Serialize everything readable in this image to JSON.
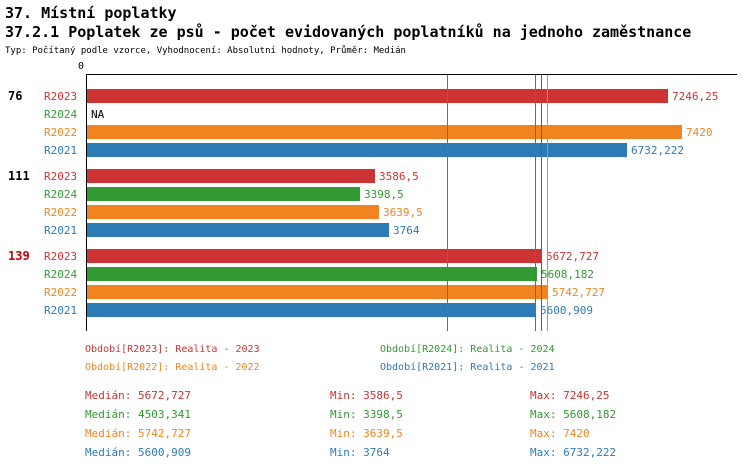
{
  "header": {
    "title": "37. Místní poplatky",
    "subtitle": "37.2.1 Poplatek ze psů - počet evidovaných poplatníků na jednoho zaměstnance",
    "meta": "Typ: Počítaný podle vzorce, Vyhodnocení: Absolutní hodnoty, Průměr: Medián"
  },
  "series_colors": {
    "R2023": "#cc3333",
    "R2024": "#339933",
    "R2022": "#f08421",
    "R2021": "#2d7bb6"
  },
  "chart_data": {
    "type": "bar",
    "orientation": "horizontal",
    "x_axis": {
      "origin_label": "0",
      "xmax": 7420
    },
    "groups": [
      {
        "label": "76",
        "label_color": "#000000",
        "bars": [
          {
            "series": "R2023",
            "value": 7246.25,
            "display": "7246,25"
          },
          {
            "series": "R2024",
            "value": null,
            "display": "NA"
          },
          {
            "series": "R2022",
            "value": 7420,
            "display": "7420"
          },
          {
            "series": "R2021",
            "value": 6732.222,
            "display": "6732,222"
          }
        ]
      },
      {
        "label": "111",
        "label_color": "#000000",
        "bars": [
          {
            "series": "R2023",
            "value": 3586.5,
            "display": "3586,5"
          },
          {
            "series": "R2024",
            "value": 3398.5,
            "display": "3398,5"
          },
          {
            "series": "R2022",
            "value": 3639.5,
            "display": "3639,5"
          },
          {
            "series": "R2021",
            "value": 3764,
            "display": "3764"
          }
        ]
      },
      {
        "label": "139",
        "label_color": "#cc0000",
        "bars": [
          {
            "series": "R2023",
            "value": 5672.727,
            "display": "5672,727"
          },
          {
            "series": "R2024",
            "value": 5608.182,
            "display": "5608,182"
          },
          {
            "series": "R2022",
            "value": 5742.727,
            "display": "5742,727"
          },
          {
            "series": "R2021",
            "value": 5600.909,
            "display": "5600,909"
          }
        ]
      }
    ],
    "median_lines": [
      {
        "series": "R2024",
        "value": 4503.341
      },
      {
        "series": "R2021",
        "value": 5600.909
      },
      {
        "series": "R2023",
        "value": 5672.727
      },
      {
        "series": "R2022",
        "value": 5742.727
      }
    ]
  },
  "legend": [
    {
      "series": "R2023",
      "label": "Období[R2023]: Realita - 2023"
    },
    {
      "series": "R2024",
      "label": "Období[R2024]: Realita - 2024"
    },
    {
      "series": "R2022",
      "label": "Období[R2022]: Realita - 2022"
    },
    {
      "series": "R2021",
      "label": "Období[R2021]: Realita - 2021"
    }
  ],
  "stats": [
    {
      "series": "R2023",
      "median": "Medián: 5672,727",
      "min": "Min: 3586,5",
      "max": "Max: 7246,25"
    },
    {
      "series": "R2024",
      "median": "Medián: 4503,341",
      "min": "Min: 3398,5",
      "max": "Max: 5608,182"
    },
    {
      "series": "R2022",
      "median": "Medián: 5742,727",
      "min": "Min: 3639,5",
      "max": "Max: 7420"
    },
    {
      "series": "R2021",
      "median": "Medián: 5600,909",
      "min": "Min: 3764",
      "max": "Max: 6732,222"
    }
  ]
}
